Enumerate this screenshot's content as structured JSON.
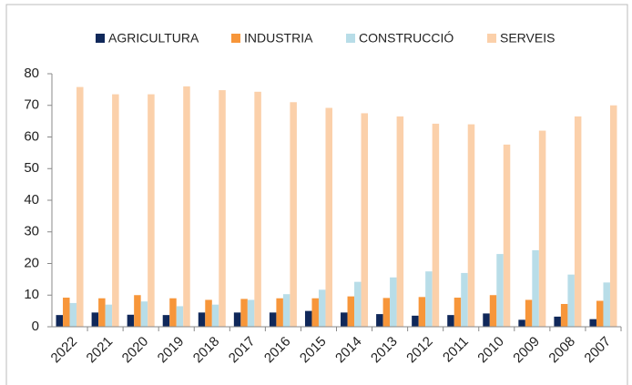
{
  "chart_data": {
    "type": "bar",
    "categories": [
      "2022",
      "2021",
      "2020",
      "2019",
      "2018",
      "2017",
      "2016",
      "2015",
      "2014",
      "2013",
      "2012",
      "2011",
      "2010",
      "2009",
      "2008",
      "2007"
    ],
    "series": [
      {
        "name": "AGRICULTURA",
        "color": "#10285a",
        "values": [
          3.7,
          4.5,
          3.8,
          3.7,
          4.5,
          4.5,
          4.5,
          5.0,
          4.5,
          4.0,
          3.5,
          3.7,
          4.2,
          2.2,
          3.2,
          2.4
        ]
      },
      {
        "name": "INDUSTRIA",
        "color": "#f7963a",
        "values": [
          9.2,
          9.0,
          10.0,
          9.0,
          8.5,
          8.8,
          9.0,
          9.0,
          9.6,
          9.1,
          9.4,
          9.2,
          10.0,
          8.5,
          7.2,
          8.2
        ]
      },
      {
        "name": "CONSTRUCCIÓ",
        "color": "#b8dde8",
        "values": [
          7.5,
          7.0,
          8.0,
          6.5,
          7.0,
          8.5,
          10.3,
          11.7,
          14.2,
          15.6,
          17.5,
          17.0,
          23.0,
          24.2,
          16.5,
          14.0
        ]
      },
      {
        "name": "SERVEIS",
        "color": "#fbd0aa",
        "values": [
          75.8,
          73.5,
          73.5,
          76.0,
          74.8,
          74.3,
          71.0,
          69.2,
          67.5,
          66.5,
          64.2,
          64.0,
          57.6,
          62.0,
          66.5,
          70.0
        ]
      }
    ],
    "ylim": [
      0,
      80
    ],
    "yticks": [
      0,
      10,
      20,
      30,
      40,
      50,
      60,
      70,
      80
    ],
    "grid": false
  }
}
